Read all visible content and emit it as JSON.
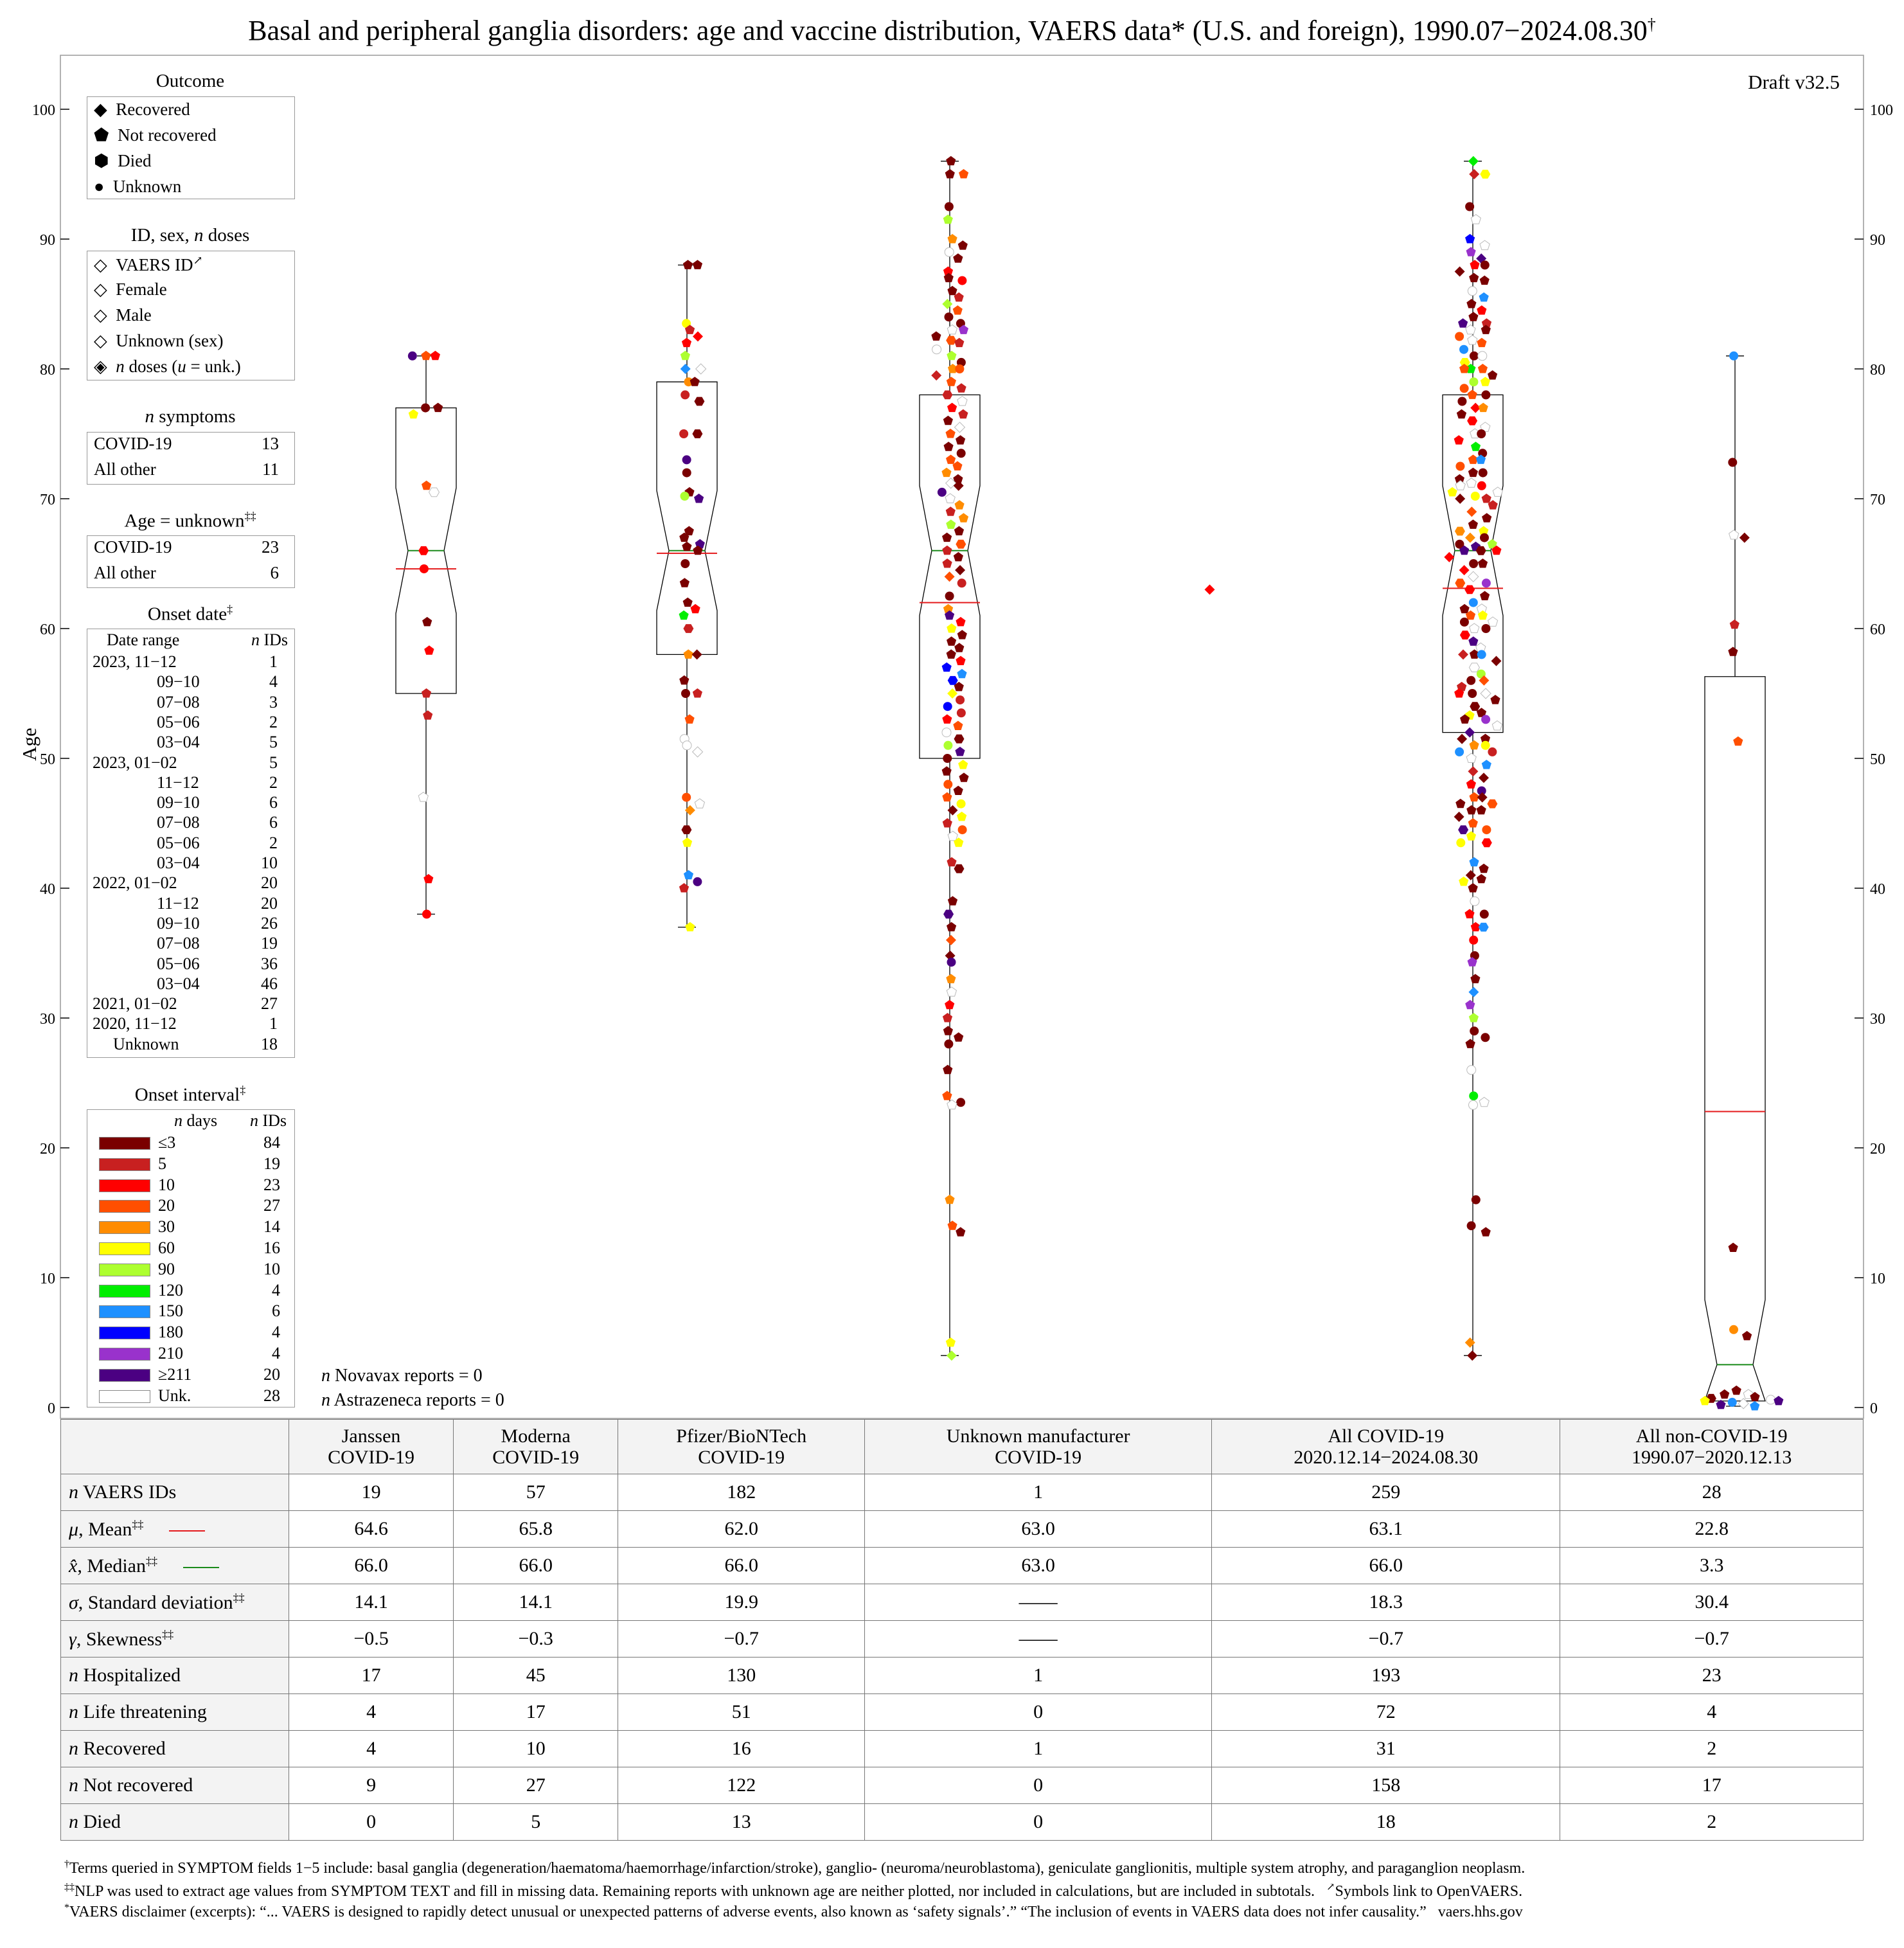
{
  "title": "Basal and peripheral ganglia disorders: age and vaccine distribution, VAERS data* (U.S. and foreign), 1990.07−2024.08.30†",
  "title_main": "Basal and peripheral ganglia disorders: age and vaccine distribution, VAERS data* (U.S. and foreign), 1990.07−2024.08.30",
  "title_mark": "†",
  "draft": "Draft v32.5",
  "colors": {
    "mean_line": "#e41a1c",
    "median_line": "#1a8a1a",
    "frame": "#999999"
  },
  "chart_data": {
    "type": "scatter",
    "title": "Basal and peripheral ganglia disorders: age and vaccine distribution",
    "ylabel": "Age",
    "ylim": [
      0,
      104
    ],
    "yticks": [
      0,
      10,
      20,
      30,
      40,
      50,
      60,
      70,
      80,
      90,
      100
    ],
    "categories": [
      "Janssen COVID-19",
      "Moderna COVID-19",
      "Pfizer/BioNTech COVID-19",
      "Unknown manufacturer COVID-19",
      "All COVID-19",
      "All non-COVID-19"
    ],
    "boxes": [
      {
        "min": 38,
        "q1": 55,
        "median": 66,
        "q3": 77,
        "max": 81,
        "mean": 64.6
      },
      {
        "min": 37,
        "q1": 58,
        "median": 66,
        "q3": 79,
        "max": 88,
        "mean": 65.8
      },
      {
        "min": 4,
        "q1": 50,
        "median": 66,
        "q3": 78,
        "max": 96,
        "mean": 62.0
      },
      null,
      {
        "min": 4,
        "q1": 52,
        "median": 66,
        "q3": 78,
        "max": 96,
        "mean": 63.1
      },
      {
        "min": 0.1,
        "q1": 0.5,
        "median": 3.3,
        "q3": 56.3,
        "max": 81,
        "mean": 22.8
      }
    ],
    "points": [
      {
        "series": 0,
        "ages": [
          81,
          81,
          81,
          77,
          77,
          76.5,
          71,
          70.5,
          66,
          64.6,
          60.5,
          58.3,
          55,
          53.3,
          47,
          40.7,
          38
        ]
      },
      {
        "series": 1,
        "ages": [
          88,
          88,
          83.5,
          83,
          82.5,
          82,
          81,
          80,
          80,
          79,
          79,
          78,
          77.5,
          75,
          75,
          73,
          72,
          70.5,
          70.2,
          70,
          67.5,
          67,
          66.5,
          66.3,
          66,
          65,
          63.5,
          62,
          61.5,
          61,
          60,
          58,
          58,
          56,
          55,
          55,
          53,
          51.5,
          51,
          50.5,
          47,
          46.5,
          46,
          44.5,
          43.5,
          41,
          40.5,
          40,
          37
        ]
      },
      {
        "series": 2,
        "ages": [
          96,
          95,
          95,
          92.5,
          91.5,
          90,
          89.5,
          89,
          88.5,
          87.5,
          87,
          86.8,
          86,
          85.5,
          85,
          84.5,
          84,
          83.5,
          83,
          83,
          82.5,
          82.2,
          82,
          81.5,
          81,
          80.5,
          80,
          80,
          79.5,
          79,
          78.5,
          78,
          77.5,
          77,
          76.5,
          76,
          75.5,
          75,
          74.5,
          74,
          73.5,
          73,
          72.5,
          72,
          71.5,
          71.2,
          71,
          70.5,
          70,
          69.5,
          69,
          68.5,
          68,
          67.5,
          67,
          66.5,
          66,
          65.5,
          65,
          64.5,
          64,
          63.5,
          62.5,
          61.5,
          61,
          60.5,
          60,
          59.5,
          59,
          58.5,
          58,
          57.5,
          57,
          56.5,
          56,
          55.5,
          55,
          54.5,
          54,
          53.5,
          53,
          52.5,
          52,
          51.5,
          51,
          50.5,
          50,
          49.5,
          49,
          48.5,
          48,
          47.5,
          47,
          46.5,
          46,
          45.5,
          45,
          44.5,
          44,
          43.5,
          42,
          41.5,
          39,
          38,
          37,
          36,
          34.8,
          34.3,
          33,
          32,
          31,
          30,
          29,
          28.5,
          28,
          26,
          24,
          23.5,
          23.3,
          16,
          14,
          13.5,
          5,
          4
        ]
      },
      {
        "series": 3,
        "ages": [
          63
        ]
      },
      {
        "series": 4,
        "ages": [
          96,
          95,
          95,
          92.5,
          91.5,
          90,
          89.5,
          89,
          88.5,
          88,
          88,
          87.5,
          87,
          86.8,
          86,
          85.5,
          85,
          84.5,
          84,
          83.5,
          83.5,
          83,
          83,
          82.5,
          82.2,
          82,
          81.5,
          81,
          81,
          80.5,
          80,
          80,
          80,
          79.5,
          79,
          79,
          78.5,
          78,
          78,
          77.5,
          77,
          77,
          76.5,
          76,
          75.5,
          75,
          75,
          74.5,
          74,
          73.5,
          73,
          73,
          72.5,
          72,
          72,
          71.5,
          71.2,
          71,
          71,
          70.5,
          70.5,
          70.2,
          70,
          70,
          69.5,
          69,
          68.5,
          68,
          67.5,
          67.5,
          67,
          67,
          66.5,
          66.5,
          66.3,
          66,
          66,
          66,
          65.5,
          65,
          65,
          64.5,
          64,
          63.5,
          63.5,
          63,
          62.5,
          62,
          61.5,
          61.5,
          61,
          61,
          60.5,
          60.5,
          60,
          60,
          59.5,
          59,
          58.5,
          58,
          58,
          58,
          57.5,
          57,
          56.5,
          56,
          56,
          55.5,
          55,
          55,
          55,
          54.5,
          54,
          53.5,
          53.3,
          53,
          53,
          52.5,
          52,
          51.5,
          51.5,
          51,
          51,
          50.5,
          50.5,
          50,
          49.5,
          49,
          48.5,
          48,
          47.5,
          47,
          47,
          46.5,
          46.5,
          46,
          46,
          45.5,
          45,
          44.5,
          44.5,
          44,
          43.5,
          43.5,
          42,
          41.5,
          41,
          40.7,
          40.5,
          40,
          39,
          38,
          38,
          37,
          37,
          36,
          34.8,
          34.3,
          33,
          32,
          31,
          30,
          29,
          28.5,
          28,
          26,
          24,
          23.5,
          23.3,
          16,
          14,
          13.5,
          5,
          4
        ]
      },
      {
        "series": 5,
        "ages": [
          81,
          72.8,
          67.2,
          67,
          60.3,
          58.2,
          51.3,
          12.3,
          6,
          5.5,
          1.3,
          1,
          1,
          0.8,
          0.7,
          0.6,
          0.5,
          0.5,
          0.4,
          0.3,
          0.2,
          0.1
        ]
      }
    ]
  },
  "legend_outcome": {
    "title": "Outcome",
    "items": [
      {
        "label": "Recovered",
        "shape": "diamond"
      },
      {
        "label": "Not recovered",
        "shape": "pentagon"
      },
      {
        "label": "Died",
        "shape": "hexagon"
      },
      {
        "label": "Unknown",
        "shape": "circle"
      }
    ]
  },
  "legend_id": {
    "title": "ID, sex, n doses",
    "title_pre": "ID, sex, ",
    "title_n": "n",
    "title_post": " doses",
    "items": [
      {
        "label": "VAERS ID",
        "mark": "↗",
        "icon": "vaers-id-icon"
      },
      {
        "label": "Female",
        "icon": "female-icon"
      },
      {
        "label": "Male",
        "icon": "male-icon"
      },
      {
        "label": "Unknown (sex)",
        "icon": "unknown-sex-icon"
      },
      {
        "label": "n doses (u = unk.)",
        "icon": "n-doses-icon",
        "pre_n": "n",
        "post_n": " doses (",
        "pre_u": "u",
        "post_u": " = unk.)"
      }
    ]
  },
  "legend_symptoms": {
    "title": "n symptoms",
    "title_n": "n",
    "title_post": " symptoms",
    "rows": [
      {
        "label": "COVID-19",
        "value": "13"
      },
      {
        "label": "All other",
        "value": "11"
      }
    ]
  },
  "legend_age_unknown": {
    "title": "Age = unknown‡‡",
    "title_main": "Age = unknown",
    "title_mark": "‡‡",
    "rows": [
      {
        "label": "COVID-19",
        "value": "23"
      },
      {
        "label": "All other",
        "value": "6"
      }
    ]
  },
  "legend_onset_date": {
    "title": "Onset date‡",
    "title_main": "Onset date",
    "title_mark": "‡",
    "col1": "Date range",
    "col2": "n IDs",
    "col2_n": "n",
    "col2_post": " IDs",
    "rows": [
      {
        "label": "2023, 11−12",
        "value": "1"
      },
      {
        "label": "09−10",
        "value": "4"
      },
      {
        "label": "07−08",
        "value": "3"
      },
      {
        "label": "05−06",
        "value": "2"
      },
      {
        "label": "03−04",
        "value": "5"
      },
      {
        "label": "2023, 01−02",
        "value": "5"
      },
      {
        "label": "11−12",
        "value": "2"
      },
      {
        "label": "09−10",
        "value": "6"
      },
      {
        "label": "07−08",
        "value": "6"
      },
      {
        "label": "05−06",
        "value": "2"
      },
      {
        "label": "03−04",
        "value": "10"
      },
      {
        "label": "2022, 01−02",
        "value": "20"
      },
      {
        "label": "11−12",
        "value": "20"
      },
      {
        "label": "09−10",
        "value": "26"
      },
      {
        "label": "07−08",
        "value": "19"
      },
      {
        "label": "05−06",
        "value": "36"
      },
      {
        "label": "03−04",
        "value": "46"
      },
      {
        "label": "2021, 01−02",
        "value": "27"
      },
      {
        "label": "2020, 11−12",
        "value": "1"
      },
      {
        "label": "Unknown",
        "value": "18"
      }
    ]
  },
  "legend_onset_interval": {
    "title": "Onset interval‡",
    "title_main": "Onset interval",
    "title_mark": "‡",
    "col1": "n days",
    "col1_n": "n",
    "col1_post": " days",
    "col2": "n IDs",
    "col2_n": "n",
    "col2_post": " IDs",
    "rows": [
      {
        "label": "≤3",
        "value": "84",
        "color": "#7a0000"
      },
      {
        "label": "5",
        "value": "19",
        "color": "#c82020"
      },
      {
        "label": "10",
        "value": "23",
        "color": "#ff0000"
      },
      {
        "label": "20",
        "value": "27",
        "color": "#ff4f00"
      },
      {
        "label": "30",
        "value": "14",
        "color": "#ff8c00"
      },
      {
        "label": "60",
        "value": "16",
        "color": "#ffff00"
      },
      {
        "label": "90",
        "value": "10",
        "color": "#adff2f"
      },
      {
        "label": "120",
        "value": "4",
        "color": "#00ee00"
      },
      {
        "label": "150",
        "value": "6",
        "color": "#1e90ff"
      },
      {
        "label": "180",
        "value": "4",
        "color": "#0000ff"
      },
      {
        "label": "210",
        "value": "4",
        "color": "#9932cc"
      },
      {
        "label": "≥211",
        "value": "20",
        "color": "#4b0082"
      },
      {
        "label": "Unk.",
        "value": "28",
        "color": "#ffffff"
      }
    ]
  },
  "notes": {
    "novavax": "n Novavax reports = 0",
    "novavax_pre": "n",
    "novavax_post": " Novavax reports = 0",
    "astrazeneca": "n Astrazeneca reports = 0",
    "astrazeneca_pre": "n",
    "astrazeneca_post": " Astrazeneca reports = 0"
  },
  "table": {
    "headers": [
      {
        "line1": "Janssen",
        "line2": "COVID-19"
      },
      {
        "line1": "Moderna",
        "line2": "COVID-19"
      },
      {
        "line1": "Pfizer/BioNTech",
        "line2": "COVID-19"
      },
      {
        "line1": "Unknown manufacturer",
        "line2": "COVID-19"
      },
      {
        "line1": "All COVID-19",
        "line2": "2020.12.14−2024.08.30"
      },
      {
        "line1": "All non-COVID-19",
        "line2": "1990.07−2020.12.13"
      }
    ],
    "rows": [
      {
        "label": "n VAERS IDs",
        "sym": "n",
        "text": " VAERS IDs",
        "mark": "",
        "values": [
          "19",
          "57",
          "182",
          "1",
          "259",
          "28"
        ]
      },
      {
        "label": "μ, Mean‡‡",
        "sym": "μ",
        "text": ", Mean",
        "mark": "‡‡",
        "line": "mean",
        "values": [
          "64.6",
          "65.8",
          "62.0",
          "63.0",
          "63.1",
          "22.8"
        ]
      },
      {
        "label": "x̂, Median‡‡",
        "sym": "x̂",
        "text": ", Median",
        "mark": "‡‡",
        "line": "median",
        "values": [
          "66.0",
          "66.0",
          "66.0",
          "63.0",
          "66.0",
          "3.3"
        ]
      },
      {
        "label": "σ, Standard deviation‡‡",
        "sym": "σ",
        "text": ", Standard deviation",
        "mark": "‡‡",
        "values": [
          "14.1",
          "14.1",
          "19.9",
          "——",
          "18.3",
          "30.4"
        ]
      },
      {
        "label": "γ, Skewness‡‡",
        "sym": "γ",
        "text": ", Skewness",
        "mark": "‡‡",
        "values": [
          "−0.5",
          "−0.3",
          "−0.7",
          "——",
          "−0.7",
          "−0.7"
        ]
      },
      {
        "label": "n Hospitalized",
        "sym": "n",
        "text": " Hospitalized",
        "mark": "",
        "values": [
          "17",
          "45",
          "130",
          "1",
          "193",
          "23"
        ]
      },
      {
        "label": "n Life threatening",
        "sym": "n",
        "text": " Life threatening",
        "mark": "",
        "values": [
          "4",
          "17",
          "51",
          "0",
          "72",
          "4"
        ]
      },
      {
        "label": "n Recovered",
        "sym": "n",
        "text": " Recovered",
        "mark": "",
        "values": [
          "4",
          "10",
          "16",
          "1",
          "31",
          "2"
        ]
      },
      {
        "label": "n Not recovered",
        "sym": "n",
        "text": " Not recovered",
        "mark": "",
        "values": [
          "9",
          "27",
          "122",
          "0",
          "158",
          "17"
        ]
      },
      {
        "label": "n Died",
        "sym": "n",
        "text": " Died",
        "mark": "",
        "values": [
          "0",
          "5",
          "13",
          "0",
          "18",
          "2"
        ]
      }
    ]
  },
  "footnotes": {
    "f1_mark": "†",
    "f1": "Terms queried in SYMPTOM fields 1−5 include: basal ganglia (degeneration/haematoma/haemorrhage/infarction/stroke), ganglio- (neuroma/neuroblastoma), geniculate ganglionitis, multiple system atrophy, and paraganglion neoplasm.",
    "f2_mark": "‡‡",
    "f2": "NLP was used to extract age values from SYMPTOM TEXT and fill in missing data. Remaining reports with unknown age are neither plotted, nor included in calculations, but are included in subtotals.",
    "f2_link_mark": "↗",
    "f2_link": "Symbols link to OpenVAERS.",
    "f3_mark": "*",
    "f3": "VAERS disclaimer (excerpts): “... VAERS is designed to rapidly detect unusual or unexpected patterns of adverse events, also known as ‘safety signals’.” “The inclusion of events in VAERS data does not infer causality.”",
    "f3_source": "vaers.hhs.gov"
  }
}
